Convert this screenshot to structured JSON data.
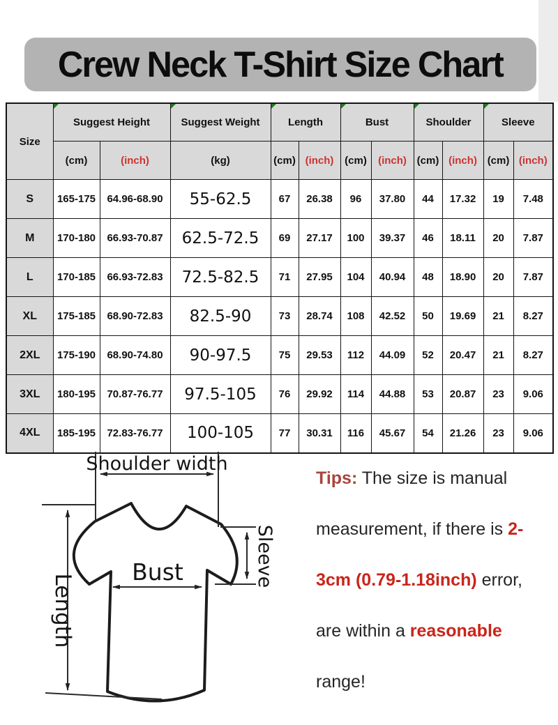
{
  "title": "Crew Neck T-Shirt Size Chart",
  "colors": {
    "title_bg": "#b3b3b3",
    "table_header_bg": "#d9d9d9",
    "table_border": "#141414",
    "inch_red": "#cc3333",
    "tip_label_red": "#a8453c",
    "tip_highlight_red": "#c9251b",
    "excel_corner_green": "#217a21"
  },
  "table": {
    "size_header": "Size",
    "groups": [
      {
        "label": "Suggest Height",
        "units": [
          "(cm)",
          "(inch)"
        ]
      },
      {
        "label": "Suggest Weight",
        "units": [
          "(kg)"
        ]
      },
      {
        "label": "Length",
        "units": [
          "(cm)",
          "(inch)"
        ]
      },
      {
        "label": "Bust",
        "units": [
          "(cm)",
          "(inch)"
        ]
      },
      {
        "label": "Shoulder",
        "units": [
          "(cm)",
          "(inch)"
        ]
      },
      {
        "label": "Sleeve",
        "units": [
          "(cm)",
          "(inch)"
        ]
      }
    ],
    "rows": [
      {
        "size": "S",
        "height_cm": "165-175",
        "height_inch": "64.96-68.90",
        "weight_kg": "55-62.5",
        "length_cm": "67",
        "length_inch": "26.38",
        "bust_cm": "96",
        "bust_inch": "37.80",
        "shoulder_cm": "44",
        "shoulder_inch": "17.32",
        "sleeve_cm": "19",
        "sleeve_inch": "7.48"
      },
      {
        "size": "M",
        "height_cm": "170-180",
        "height_inch": "66.93-70.87",
        "weight_kg": "62.5-72.5",
        "length_cm": "69",
        "length_inch": "27.17",
        "bust_cm": "100",
        "bust_inch": "39.37",
        "shoulder_cm": "46",
        "shoulder_inch": "18.11",
        "sleeve_cm": "20",
        "sleeve_inch": "7.87"
      },
      {
        "size": "L",
        "height_cm": "170-185",
        "height_inch": "66.93-72.83",
        "weight_kg": "72.5-82.5",
        "length_cm": "71",
        "length_inch": "27.95",
        "bust_cm": "104",
        "bust_inch": "40.94",
        "shoulder_cm": "48",
        "shoulder_inch": "18.90",
        "sleeve_cm": "20",
        "sleeve_inch": "7.87"
      },
      {
        "size": "XL",
        "height_cm": "175-185",
        "height_inch": "68.90-72.83",
        "weight_kg": "82.5-90",
        "length_cm": "73",
        "length_inch": "28.74",
        "bust_cm": "108",
        "bust_inch": "42.52",
        "shoulder_cm": "50",
        "shoulder_inch": "19.69",
        "sleeve_cm": "21",
        "sleeve_inch": "8.27"
      },
      {
        "size": "2XL",
        "height_cm": "175-190",
        "height_inch": "68.90-74.80",
        "weight_kg": "90-97.5",
        "length_cm": "75",
        "length_inch": "29.53",
        "bust_cm": "112",
        "bust_inch": "44.09",
        "shoulder_cm": "52",
        "shoulder_inch": "20.47",
        "sleeve_cm": "21",
        "sleeve_inch": "8.27"
      },
      {
        "size": "3XL",
        "height_cm": "180-195",
        "height_inch": "70.87-76.77",
        "weight_kg": "97.5-105",
        "length_cm": "76",
        "length_inch": "29.92",
        "bust_cm": "114",
        "bust_inch": "44.88",
        "shoulder_cm": "53",
        "shoulder_inch": "20.87",
        "sleeve_cm": "23",
        "sleeve_inch": "9.06"
      },
      {
        "size": "4XL",
        "height_cm": "185-195",
        "height_inch": "72.83-76.77",
        "weight_kg": "100-105",
        "length_cm": "77",
        "length_inch": "30.31",
        "bust_cm": "116",
        "bust_inch": "45.67",
        "shoulder_cm": "54",
        "shoulder_inch": "21.26",
        "sleeve_cm": "23",
        "sleeve_inch": "9.06"
      }
    ]
  },
  "diagram": {
    "labels": {
      "shoulder_width": "Shoulder width",
      "bust": "Bust",
      "sleeve": "Sleeve",
      "length": "Length"
    }
  },
  "tips": {
    "lines": [
      [
        {
          "text": "Tips:",
          "red": true,
          "lbl": true
        },
        {
          "text": " The size is manual",
          "red": false
        }
      ],
      [
        {
          "text": "measurement, if there is ",
          "red": false
        },
        {
          "text": "2-",
          "red": true
        }
      ],
      [
        {
          "text": "3cm (0.79-1.18inch)",
          "red": true
        },
        {
          "text": " error,",
          "red": false
        }
      ],
      [
        {
          "text": "are within a ",
          "red": false
        },
        {
          "text": "reasonable",
          "red": true
        }
      ],
      [
        {
          "text": "range!",
          "red": false
        }
      ]
    ]
  }
}
